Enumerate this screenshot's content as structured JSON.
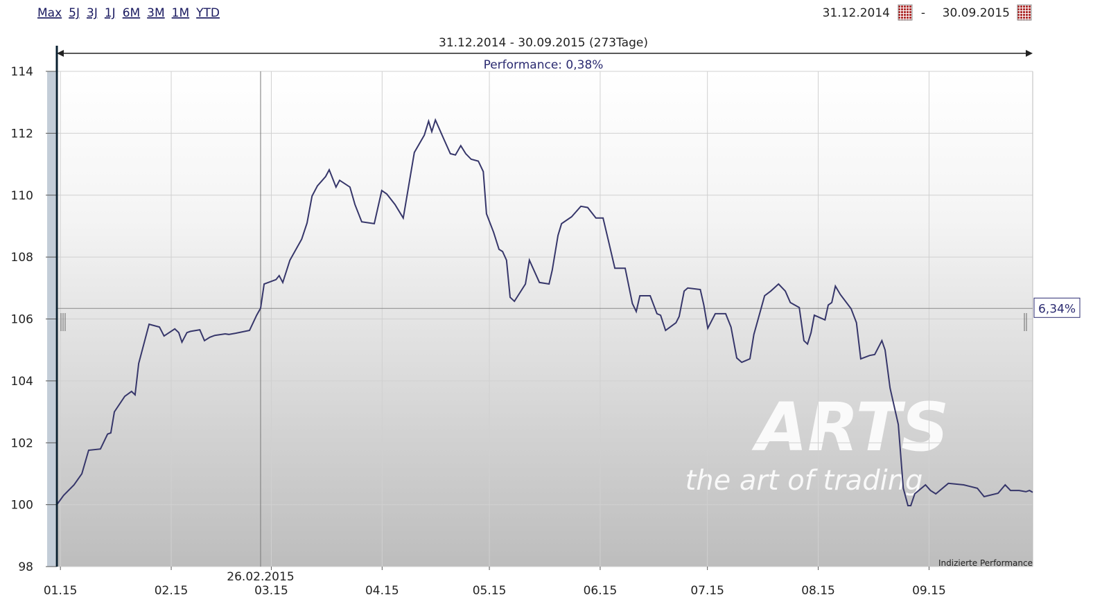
{
  "toolbar": {
    "ranges": [
      "Max",
      "5J",
      "3J",
      "1J",
      "6M",
      "3M",
      "1M",
      "YTD"
    ],
    "date_from": "31.12.2014",
    "separator": "-",
    "date_to": "30.09.2015"
  },
  "chart_data": {
    "type": "line",
    "title": "31.12.2014 - 30.09.2015 (273Tage)",
    "subtitle": "Performance: 0,38%",
    "watermark": {
      "brand": "ARTS",
      "slogan": "the art of trading"
    },
    "xlim": [
      0,
      273
    ],
    "xticks": [
      {
        "value": 1,
        "label": "01.15"
      },
      {
        "value": 32,
        "label": "02.15"
      },
      {
        "value": 60,
        "label": "03.15"
      },
      {
        "value": 91,
        "label": "04.15"
      },
      {
        "value": 121,
        "label": "05.15"
      },
      {
        "value": 152,
        "label": "06.15"
      },
      {
        "value": 182,
        "label": "07.15"
      },
      {
        "value": 213,
        "label": "08.15"
      },
      {
        "value": 244,
        "label": "09.15"
      }
    ],
    "ylim": [
      98,
      114
    ],
    "yticks": [
      98,
      100,
      102,
      104,
      106,
      108,
      110,
      112,
      114
    ],
    "grid": true,
    "marker": {
      "x": 57,
      "label": "26.02.2015"
    },
    "hline": {
      "value": 106.34,
      "label": "6,34%"
    },
    "x": [
      0,
      1.9,
      4.8,
      7,
      8.9,
      12.2,
      14.2,
      15.1,
      16.1,
      19,
      20.9,
      21.9,
      22.9,
      25.8,
      28.7,
      30,
      33,
      34.1,
      35,
      36.4,
      37.4,
      40,
      41.3,
      42.8,
      44.2,
      47.1,
      48.1,
      50,
      53.9,
      55.9,
      57,
      58,
      61.3,
      62.2,
      63.2,
      65.2,
      68.5,
      70,
      71.4,
      72.9,
      75.2,
      76.2,
      78.1,
      79.1,
      82,
      83.4,
      85.3,
      88.8,
      90.9,
      92.3,
      94.6,
      96.9,
      100,
      102.8,
      104,
      104.9,
      105.9,
      108.2,
      110.1,
      111.5,
      113,
      114.4,
      115.9,
      117.9,
      119.3,
      120.2,
      122.2,
      123.7,
      124.7,
      125.8,
      126.8,
      128,
      131.1,
      132.2,
      135,
      137.7,
      138.6,
      140.2,
      141.2,
      144,
      146.6,
      148.5,
      150.8,
      152.8,
      154.2,
      156.1,
      159,
      161,
      162.1,
      163.1,
      166,
      167.9,
      168.9,
      170.3,
      173.2,
      174.1,
      175.5,
      176.5,
      180,
      181,
      182.1,
      184.2,
      187.1,
      188.6,
      190.2,
      191.6,
      193.9,
      195,
      198,
      199.7,
      201.9,
      203.8,
      205.2,
      207.7,
      209,
      210,
      211,
      211.9,
      214.9,
      215.8,
      216.8,
      217.8,
      219.2,
      222.2,
      223.7,
      224.9,
      227.4,
      228.8,
      230.8,
      231.7,
      233.1,
      235.4,
      236.8,
      238.1,
      238.9,
      240,
      243,
      244.4,
      245.9,
      249.4,
      253.7,
      257.5,
      259.4,
      263.3,
      265.3,
      266.8,
      269.2,
      271.1,
      272.1,
      273
    ],
    "series": [
      {
        "name": "Indizierte Performance",
        "color": "#36366a",
        "values": [
          100,
          100.3,
          100.64,
          101,
          101.76,
          101.8,
          102.28,
          102.32,
          103,
          103.5,
          103.66,
          103.55,
          104.56,
          105.83,
          105.74,
          105.45,
          105.68,
          105.56,
          105.25,
          105.56,
          105.6,
          105.65,
          105.3,
          105.41,
          105.47,
          105.52,
          105.5,
          105.54,
          105.63,
          106.12,
          106.35,
          107.13,
          107.27,
          107.4,
          107.18,
          107.9,
          108.58,
          109.1,
          109.97,
          110.3,
          110.6,
          110.82,
          110.26,
          110.48,
          110.26,
          109.7,
          109.14,
          109.08,
          110.15,
          110.04,
          109.7,
          109.26,
          111.38,
          111.94,
          112.39,
          112.05,
          112.43,
          111.83,
          111.34,
          111.3,
          111.6,
          111.34,
          111.16,
          111.1,
          110.76,
          109.4,
          108.8,
          108.25,
          108.18,
          107.9,
          106.7,
          106.57,
          107.13,
          107.9,
          107.18,
          107.13,
          107.58,
          108.7,
          109.08,
          109.3,
          109.64,
          109.6,
          109.26,
          109.26,
          108.58,
          107.64,
          107.64,
          106.5,
          106.24,
          106.75,
          106.75,
          106.17,
          106.12,
          105.63,
          105.88,
          106.08,
          106.9,
          107,
          106.95,
          106.45,
          105.7,
          106.17,
          106.17,
          105.74,
          104.74,
          104.6,
          104.71,
          105.5,
          106.75,
          106.9,
          107.13,
          106.9,
          106.53,
          106.37,
          105.3,
          105.19,
          105.56,
          106.12,
          105.97,
          106.45,
          106.53,
          107.06,
          106.79,
          106.33,
          105.88,
          104.71,
          104.82,
          104.85,
          105.3,
          105,
          103.77,
          102.59,
          100.53,
          99.97,
          99.97,
          100.35,
          100.64,
          100.46,
          100.35,
          100.69,
          100.64,
          100.53,
          100.26,
          100.37,
          100.64,
          100.46,
          100.46,
          100.42,
          100.46,
          100.4
        ]
      }
    ]
  }
}
